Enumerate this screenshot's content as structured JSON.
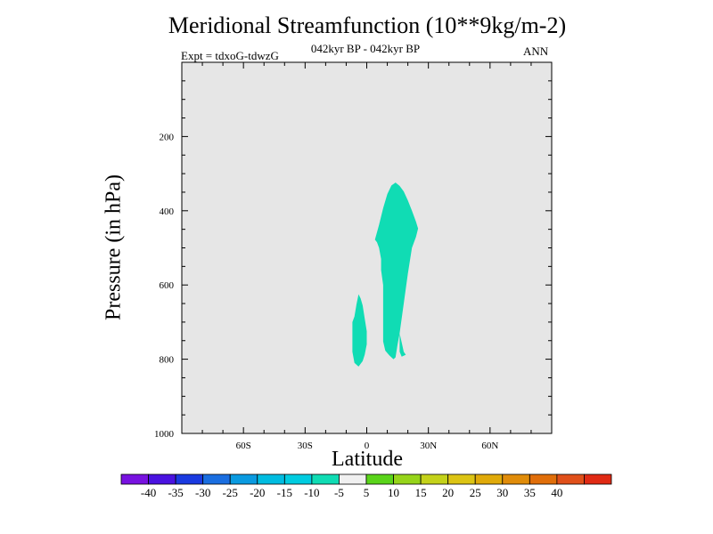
{
  "chart_data": {
    "type": "contour",
    "title": "Meridional Streamfunction (10**9kg/m-2)",
    "subtitle": "042kyr BP - 042kyr BP",
    "experiment_label": "Expt = tdxoG-tdwzG",
    "season": "ANN",
    "xlabel": "Latitude",
    "ylabel": "Pressure (in hPa)",
    "xlim": [
      -90,
      90
    ],
    "ylim": [
      1000,
      0
    ],
    "x_ticks": [
      {
        "value": -60,
        "label": "60S"
      },
      {
        "value": -30,
        "label": "30S"
      },
      {
        "value": 0,
        "label": "0"
      },
      {
        "value": 30,
        "label": "30N"
      },
      {
        "value": 60,
        "label": "60N"
      }
    ],
    "y_ticks": [
      {
        "value": 200,
        "label": "200"
      },
      {
        "value": 400,
        "label": "400"
      },
      {
        "value": 600,
        "label": "600"
      },
      {
        "value": 800,
        "label": "800"
      },
      {
        "value": 1000,
        "label": "1000"
      }
    ],
    "background_color": "#e6e6e6",
    "filled_regions": [
      {
        "name": "main-cell",
        "level_range": [
          -10,
          -5
        ],
        "color": "#10dcb4",
        "points": [
          [
            4,
            478
          ],
          [
            6,
            438
          ],
          [
            8,
            393
          ],
          [
            10,
            355
          ],
          [
            12,
            332
          ],
          [
            14,
            324
          ],
          [
            16,
            333
          ],
          [
            18,
            348
          ],
          [
            20,
            372
          ],
          [
            22,
            400
          ],
          [
            24,
            430
          ],
          [
            25,
            448
          ],
          [
            24,
            470
          ],
          [
            22,
            500
          ],
          [
            21,
            535
          ],
          [
            20,
            570
          ],
          [
            19,
            610
          ],
          [
            18,
            650
          ],
          [
            17,
            690
          ],
          [
            16,
            730
          ],
          [
            15,
            760
          ],
          [
            14,
            795
          ],
          [
            13,
            800
          ],
          [
            11,
            790
          ],
          [
            9,
            777
          ],
          [
            8,
            752
          ],
          [
            8,
            718
          ],
          [
            8,
            680
          ],
          [
            8,
            640
          ],
          [
            8,
            600
          ],
          [
            7,
            560
          ],
          [
            7,
            530
          ],
          [
            6,
            500
          ],
          [
            5,
            485
          ]
        ]
      },
      {
        "name": "left-cell",
        "level_range": [
          -10,
          -5
        ],
        "color": "#10dcb4",
        "points": [
          [
            -6,
            685
          ],
          [
            -5,
            652
          ],
          [
            -4,
            625
          ],
          [
            -3,
            636
          ],
          [
            -2,
            655
          ],
          [
            -1,
            690
          ],
          [
            0,
            725
          ],
          [
            0,
            760
          ],
          [
            -1,
            788
          ],
          [
            -2,
            805
          ],
          [
            -4,
            820
          ],
          [
            -6,
            810
          ],
          [
            -7,
            780
          ],
          [
            -7,
            735
          ],
          [
            -7,
            700
          ]
        ]
      },
      {
        "name": "right-sliver",
        "level_range": [
          -10,
          -5
        ],
        "color": "#10dcb4",
        "points": [
          [
            16,
            730
          ],
          [
            17,
            755
          ],
          [
            18,
            780
          ],
          [
            19,
            788
          ],
          [
            17,
            793
          ],
          [
            16,
            780
          ],
          [
            16,
            755
          ]
        ]
      }
    ],
    "colorbar": {
      "colors": [
        "#7812e0",
        "#4a12e0",
        "#1a3ae0",
        "#1a6ee0",
        "#0a9ae0",
        "#00bce0",
        "#00cce0",
        "#10dcb4",
        "#f0f0f0",
        "#5ad41a",
        "#96d41a",
        "#c4d21a",
        "#dcc414",
        "#e0aa0a",
        "#e08c0a",
        "#e06e0a",
        "#e0501a",
        "#e02a14"
      ],
      "labels": [
        "-40",
        "-35",
        "-30",
        "-25",
        "-20",
        "-15",
        "-10",
        "-5",
        "5",
        "10",
        "15",
        "20",
        "25",
        "30",
        "35",
        "40"
      ]
    }
  }
}
